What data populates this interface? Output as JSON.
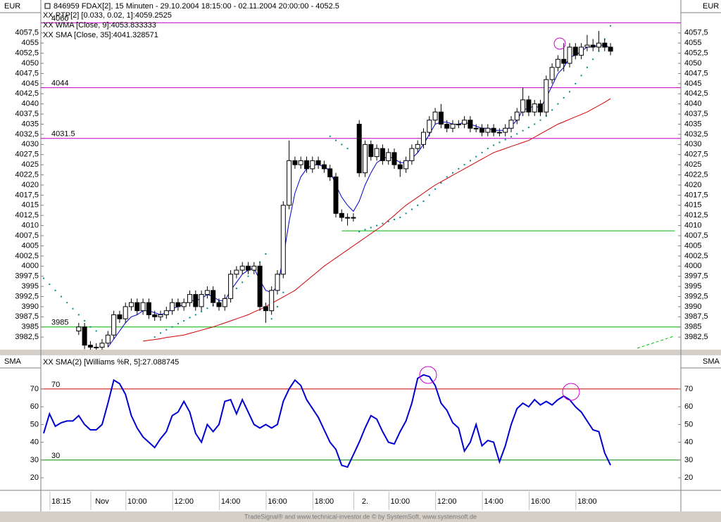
{
  "chart_data": [
    {
      "type": "candlestick",
      "title": "846959  FDAX[2], 15 Minuten - 29.10.2004 18:15:00 - 02.11.2004 20:00:00 - 4052.5",
      "unit": "EUR",
      "categories": [
        null,
        null,
        null,
        "18:15",
        null,
        null,
        null,
        null,
        null,
        null,
        "Nov",
        null,
        null,
        null,
        null,
        null,
        "10:00",
        null,
        null,
        null,
        null,
        null,
        null,
        null,
        "12:00",
        null,
        null,
        null,
        null,
        null,
        null,
        null,
        "14:00",
        null,
        null,
        null,
        null,
        null,
        null,
        null,
        "16:00",
        null,
        null,
        null,
        null,
        null,
        null,
        null,
        "18:00",
        null,
        null,
        null,
        null,
        null,
        null,
        "2.",
        null,
        null,
        null,
        null,
        null,
        "10:00",
        null,
        null,
        null,
        null,
        null,
        null,
        null,
        "12:00",
        null,
        null,
        null,
        null,
        null,
        null,
        null,
        "14:00",
        null,
        null,
        null,
        null,
        null,
        null,
        null,
        "16:00",
        null,
        null,
        null,
        null,
        null,
        null,
        null,
        "18:00",
        null,
        null,
        null,
        null
      ],
      "ohlc": [
        null,
        null,
        null,
        null,
        null,
        null,
        [
          3984,
          3986,
          3983,
          3985
        ],
        [
          3985,
          3986,
          3979.5,
          3980.5
        ],
        [
          3980.5,
          3981.5,
          3979,
          3980
        ],
        [
          3980,
          3981,
          3979,
          3980
        ],
        [
          3980,
          3982,
          3979,
          3981
        ],
        [
          3981,
          3984,
          3980,
          3983
        ],
        [
          3983,
          3989,
          3982,
          3988
        ],
        [
          3988,
          3989,
          3986,
          3987
        ],
        [
          3987,
          3991,
          3986,
          3990
        ],
        [
          3990,
          3992,
          3989,
          3991
        ],
        [
          3991,
          3992,
          3988,
          3989
        ],
        [
          3989,
          3992,
          3988,
          3991
        ],
        [
          3991,
          3992,
          3987,
          3988
        ],
        [
          3988,
          3989,
          3986.5,
          3987.5
        ],
        [
          3987.5,
          3989,
          3986.5,
          3988
        ],
        [
          3988,
          3990,
          3987,
          3989
        ],
        [
          3989,
          3992,
          3988,
          3991
        ],
        [
          3991,
          3992,
          3989,
          3990
        ],
        [
          3990,
          3992,
          3989,
          3991
        ],
        [
          3991,
          3994,
          3990,
          3993
        ],
        [
          3993,
          3994,
          3989,
          3990
        ],
        [
          3990,
          3994,
          3989,
          3993
        ],
        [
          3993,
          3995,
          3992,
          3994
        ],
        [
          3994,
          3995,
          3990,
          3991
        ],
        [
          3991,
          3992,
          3989,
          3990
        ],
        [
          3990,
          3993,
          3989,
          3992
        ],
        [
          3992,
          3999,
          3991,
          3998
        ],
        [
          3998,
          4000,
          3997,
          3999
        ],
        [
          3999,
          4001,
          3998,
          4000
        ],
        [
          4000,
          4001,
          3998,
          3999
        ],
        [
          3999,
          4001,
          3998,
          4000
        ],
        [
          4000,
          4001,
          3989,
          3990
        ],
        [
          3990,
          3991,
          3986,
          3989
        ],
        [
          3989,
          3995,
          3988,
          3994
        ],
        [
          3994,
          3999,
          3993,
          3998
        ],
        [
          3998,
          4016,
          3997,
          4015
        ],
        [
          4015,
          4031,
          4014,
          4026
        ],
        [
          4026,
          4027,
          4024,
          4025
        ],
        [
          4025,
          4027,
          4024,
          4026
        ],
        [
          4026,
          4027,
          4023,
          4024
        ],
        [
          4024,
          4027,
          4023,
          4026
        ],
        [
          4026,
          4027,
          4024,
          4025
        ],
        [
          4025,
          4026,
          4023,
          4024
        ],
        [
          4024,
          4025,
          4021,
          4022
        ],
        [
          4022,
          4023,
          4012,
          4013
        ],
        [
          4013,
          4014,
          4011,
          4012
        ],
        [
          4012,
          4013,
          4010,
          4012
        ],
        [
          4012,
          4013,
          4011,
          4012
        ],
        [
          4035,
          4036,
          4022,
          4023
        ],
        [
          4023,
          4031,
          4022,
          4030
        ],
        [
          4030,
          4031,
          4026,
          4027
        ],
        [
          4027,
          4030,
          4026,
          4029
        ],
        [
          4029,
          4030,
          4025,
          4026
        ],
        [
          4026,
          4029,
          4025,
          4028
        ],
        [
          4028,
          4029,
          4024,
          4025
        ],
        [
          4025,
          4026,
          4022,
          4024
        ],
        [
          4024,
          4027,
          4023,
          4026
        ],
        [
          4026,
          4030,
          4025,
          4029
        ],
        [
          4029,
          4031,
          4028,
          4030
        ],
        [
          4030,
          4034,
          4029,
          4033
        ],
        [
          4033,
          4037,
          4032,
          4036
        ],
        [
          4036,
          4039,
          4035,
          4038
        ],
        [
          4038,
          4040,
          4034,
          4035
        ],
        [
          4035,
          4036,
          4033,
          4034
        ],
        [
          4034,
          4036,
          4033,
          4035
        ],
        [
          4035,
          4036,
          4034,
          4035
        ],
        [
          4035,
          4037,
          4034,
          4036
        ],
        [
          4036,
          4037,
          4033,
          4034
        ],
        [
          4034,
          4035,
          4033,
          4034
        ],
        [
          4034,
          4035,
          4032,
          4033
        ],
        [
          4033,
          4035,
          4032,
          4034
        ],
        [
          4034,
          4035,
          4032,
          4033
        ],
        [
          4033,
          4034,
          4032,
          4033
        ],
        [
          4033,
          4035,
          4032,
          4034
        ],
        [
          4034,
          4037,
          4033,
          4036
        ],
        [
          4036,
          4039,
          4035,
          4038
        ],
        [
          4038,
          4044,
          4037,
          4041
        ],
        [
          4041,
          4042,
          4037,
          4038
        ],
        [
          4038,
          4041,
          4037,
          4040
        ],
        [
          4040,
          4041,
          4037,
          4038
        ],
        [
          4038,
          4047,
          4037,
          4046
        ],
        [
          4046,
          4050,
          4045,
          4049
        ],
        [
          4049,
          4052,
          4048,
          4051
        ],
        [
          4051,
          4055,
          4048,
          4050
        ],
        [
          4050,
          4055,
          4049,
          4054
        ],
        [
          4054,
          4055,
          4051,
          4052
        ],
        [
          4052,
          4055,
          4051,
          4054
        ],
        [
          4054,
          4057,
          4053,
          4054.5
        ],
        [
          4054.5,
          4056,
          4053,
          4054
        ],
        [
          4054,
          4058,
          4053,
          4055
        ],
        [
          4055,
          4056,
          4053,
          4054
        ],
        [
          4054,
          4055,
          4052,
          4053
        ]
      ],
      "up_color": "#ffffff",
      "down_color": "#000000",
      "series": [
        {
          "name": "XX PTP[2] [0.033, 0.02, 1]:4059.2525",
          "color": "#008c8c",
          "style": "dots",
          "values": [
            3997,
            3995.5,
            3994,
            3992.5,
            3991,
            3989.5,
            3988,
            3986.5,
            3985,
            3984,
            null,
            null,
            null,
            null,
            null,
            null,
            null,
            null,
            null,
            3982.5,
            3983.5,
            3984.3,
            3985,
            3985.8,
            3986.5,
            3987.3,
            3988,
            3988.8,
            3989.6,
            3990.4,
            3991.2,
            3992,
            3993,
            3994.5,
            3996,
            3997.5,
            3999,
            4001,
            4003,
            3987,
            3990,
            3993.5,
            null,
            null,
            null,
            null,
            null,
            null,
            null,
            4032,
            4031,
            4030,
            4029,
            null,
            4008.5,
            4009,
            4009.5,
            4010,
            4010.5,
            4011,
            4011.5,
            4012,
            4013,
            4014,
            4015,
            4016,
            4017.5,
            4019,
            4020.5,
            4022,
            4023,
            4024,
            4025,
            4026,
            4027,
            4028,
            4029,
            4029.8,
            4030.5,
            4031.2,
            4031.9,
            4032.6,
            4033.4,
            4034.2,
            4035,
            4036,
            4037,
            4038.5,
            4040,
            4041.5,
            4043,
            4045,
            4047,
            4049,
            4051,
            4053,
            4056,
            4059.25
          ]
        },
        {
          "name": "XX WMA [Close, 9]:4053.833333",
          "color": "#0000c8",
          "style": "line",
          "values": [
            null,
            null,
            null,
            null,
            null,
            null,
            null,
            null,
            null,
            null,
            null,
            3980,
            3982,
            3984,
            3986,
            3987.5,
            3988,
            3989,
            3989,
            3988.5,
            3988,
            3988.5,
            3989.5,
            3990,
            3990.5,
            3991.5,
            3991.5,
            3992,
            3993,
            3992.5,
            3991.5,
            3991.5,
            3994,
            3996,
            3998,
            3999,
            3999.5,
            3996.5,
            3994,
            3993.5,
            3995,
            4002,
            4011,
            4018,
            4022,
            4024,
            4025,
            4025,
            4024.5,
            4023.5,
            4020,
            4017,
            4015,
            4013.5,
            4016,
            4020,
            4023,
            4025.5,
            4026.5,
            4027,
            4026.5,
            4025.5,
            4025.5,
            4026.5,
            4028,
            4030,
            4032.5,
            4035,
            4035.5,
            4035.5,
            4035,
            4035,
            4035.5,
            4035,
            4034.5,
            4034,
            4034,
            4033.5,
            4033.5,
            4033.5,
            4034.5,
            4036,
            4038.5,
            4039,
            4039.5,
            4039,
            4041.5,
            4044.5,
            4047.5,
            4049,
            4051.5,
            4052,
            4053,
            4054,
            4054,
            4054.5,
            4054.5,
            4053.8
          ]
        },
        {
          "name": "XX SMA [Close, 35]:4041.328571",
          "color": "#d00000",
          "style": "line",
          "values": [
            null,
            null,
            null,
            null,
            null,
            null,
            null,
            null,
            null,
            null,
            null,
            null,
            null,
            null,
            null,
            null,
            null,
            3981.5,
            3981.7,
            3981.9,
            3982.1,
            3982.4,
            3982.6,
            3982.8,
            3983,
            3983.4,
            3983.8,
            3984.2,
            3984.6,
            3985,
            3985.5,
            3986,
            3986.5,
            3987,
            3987.5,
            3988,
            3988.7,
            3989.3,
            3990,
            3990.8,
            3991.6,
            3992.4,
            3993.2,
            3994,
            3995.2,
            3996.4,
            3997.6,
            3998.8,
            4000,
            4001,
            4002,
            4003,
            4004,
            4005,
            4006,
            4007,
            4008,
            4009,
            4010,
            4011.3,
            4012.5,
            4013.8,
            4015,
            4016,
            4017,
            4018,
            4019,
            4020,
            4020.8,
            4021.6,
            4022.4,
            4023.2,
            4024,
            4024.8,
            4025.6,
            4026.4,
            4027.2,
            4028,
            4028.5,
            4029,
            4029.5,
            4030,
            4030.5,
            4031,
            4031.8,
            4032.6,
            4033.4,
            4034.2,
            4035,
            4035.6,
            4036.2,
            4036.8,
            4037.4,
            4038,
            4038.8,
            4039.6,
            4040.4,
            4041.3
          ]
        }
      ],
      "levels": [
        {
          "value": 4060,
          "color": "#c000c0"
        },
        {
          "value": 4044,
          "color": "#c000c0"
        },
        {
          "value": 4031.5,
          "color": "#c000c0"
        },
        {
          "value": 3985,
          "color": "#00b000"
        }
      ],
      "segments": [
        {
          "value": 4008.7,
          "color": "#00b000",
          "x": [
            51,
            108
          ]
        }
      ],
      "ylim": [
        3979.4,
        4062.5
      ],
      "yticks": [
        {
          "value": 3982.5,
          "label": "3982,5"
        },
        3985,
        {
          "value": 3987.5,
          "label": "3987,5"
        },
        3990,
        {
          "value": 3992.5,
          "label": "3992,5"
        },
        3995,
        {
          "value": 3997.5,
          "label": "3997,5"
        },
        4000,
        {
          "value": 4002.5,
          "label": "4002,5"
        },
        4005,
        {
          "value": 4007.5,
          "label": "4007,5"
        },
        4010,
        {
          "value": 4012.5,
          "label": "4012,5"
        },
        4015,
        {
          "value": 4017.5,
          "label": "4017,5"
        },
        4020,
        {
          "value": 4022.5,
          "label": "4022,5"
        },
        4025,
        {
          "value": 4027.5,
          "label": "4027,5"
        },
        4030,
        {
          "value": 4032.5,
          "label": "4032,5"
        },
        4035,
        {
          "value": 4037.5,
          "label": "4037,5"
        },
        4040,
        {
          "value": 4042.5,
          "label": "4042,5"
        },
        4045,
        {
          "value": 4047.5,
          "label": "4047,5"
        },
        4050,
        {
          "value": 4052.5,
          "label": "4052,5"
        },
        4055,
        {
          "value": 4057.5,
          "label": "4057,5"
        }
      ]
    },
    {
      "type": "line",
      "unit": "SMA",
      "series": [
        {
          "name": "XX SMA(2) [Williams %R, 5]:27.088745",
          "color": "#0000d0",
          "style": "line",
          "values": [
            45,
            56,
            49,
            51,
            52,
            52,
            55,
            50,
            47,
            47,
            50,
            62,
            75,
            73,
            67,
            55,
            48,
            43,
            40,
            37,
            42,
            46,
            55,
            57,
            63,
            57,
            45,
            40,
            50,
            46,
            50,
            63,
            64,
            56,
            64,
            57,
            50,
            48,
            50,
            48,
            50,
            63,
            70,
            75,
            72,
            64,
            59,
            54,
            47,
            40,
            36,
            27,
            26,
            33,
            40,
            48,
            55,
            53,
            46,
            40,
            39,
            46,
            52,
            62,
            76,
            78,
            77,
            72,
            62,
            58,
            51,
            48,
            35,
            40,
            50,
            38,
            41,
            40,
            29,
            38,
            50,
            59,
            62,
            60,
            64,
            61,
            63,
            61,
            64,
            66,
            64,
            60,
            57,
            52,
            47,
            46,
            34,
            27.1
          ]
        }
      ],
      "levels": [
        {
          "value": 70,
          "color": "#c00000"
        },
        {
          "value": 30,
          "color": "#008000"
        }
      ],
      "ylim": [
        12.9,
        89
      ],
      "yticks": [
        20,
        30,
        40,
        50,
        60,
        70
      ]
    }
  ],
  "footer": "TradeSignal® and www.technical-investor.de © by SystemSoft, www.systemsoft.de"
}
